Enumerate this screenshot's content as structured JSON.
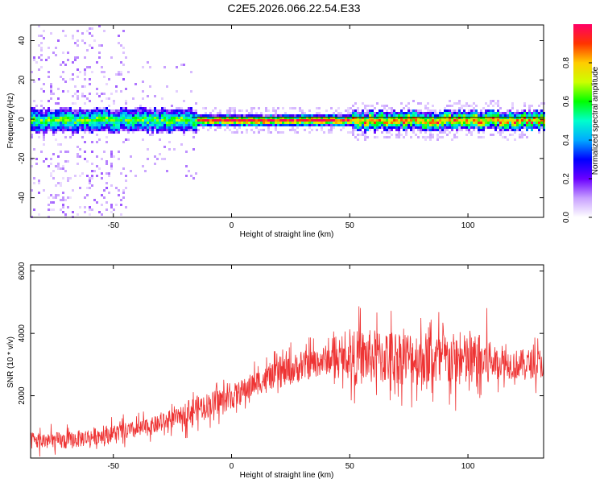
{
  "title": "C2E5.2026.066.22.54.E33",
  "chart_data": [
    {
      "type": "heatmap",
      "xlabel": "Height of straight line (km)",
      "ylabel": "Frequency (Hz)",
      "xlim": [
        -85,
        132
      ],
      "ylim": [
        -50,
        48
      ],
      "xticks": [
        -50,
        0,
        50,
        100
      ],
      "yticks": [
        -40,
        -20,
        0,
        20,
        40
      ],
      "ridge_frequency_hz": 0,
      "colorbar": {
        "label": "Normalized spectral amplitude",
        "range": [
          0.0,
          1.0
        ],
        "ticks": [
          0.0,
          0.2,
          0.4,
          0.6,
          0.8
        ],
        "colors": [
          "#ffffff",
          "#c8a0ff",
          "#6a00ff",
          "#0000ff",
          "#00aaff",
          "#00ffcc",
          "#00ff00",
          "#ccff00",
          "#ffcc00",
          "#ff3300",
          "#ff0066"
        ]
      },
      "scatter_noise_xrange": [
        -85,
        -45
      ],
      "ridge_x_segments": [
        {
          "x0": -85,
          "x1": -15,
          "width_hz": 6,
          "peak": 0.5
        },
        {
          "x0": -15,
          "x1": 50,
          "width_hz": 3,
          "peak": 0.9
        },
        {
          "x0": 50,
          "x1": 132,
          "width_hz": 5,
          "peak": 0.75
        }
      ]
    },
    {
      "type": "line",
      "xlabel": "Height of straight line (km)",
      "ylabel": "SNR (10 * v/v)",
      "xlim": [
        -85,
        132
      ],
      "ylim": [
        0,
        6200
      ],
      "xticks": [
        -50,
        0,
        50,
        100
      ],
      "yticks": [
        2000,
        4000,
        6000
      ],
      "color": "#ee3333",
      "trend_x": [
        -85,
        -70,
        -50,
        -40,
        -30,
        -20,
        -15,
        -10,
        0,
        5,
        10,
        15,
        20,
        30,
        40,
        50,
        60,
        70,
        80,
        90,
        100,
        110,
        120,
        132
      ],
      "trend_y": [
        550,
        550,
        800,
        900,
        1100,
        1400,
        1600,
        1700,
        1950,
        2150,
        2400,
        2550,
        2700,
        2950,
        3150,
        3200,
        3250,
        3250,
        3200,
        3150,
        3100,
        3100,
        3000,
        3050
      ]
    }
  ]
}
